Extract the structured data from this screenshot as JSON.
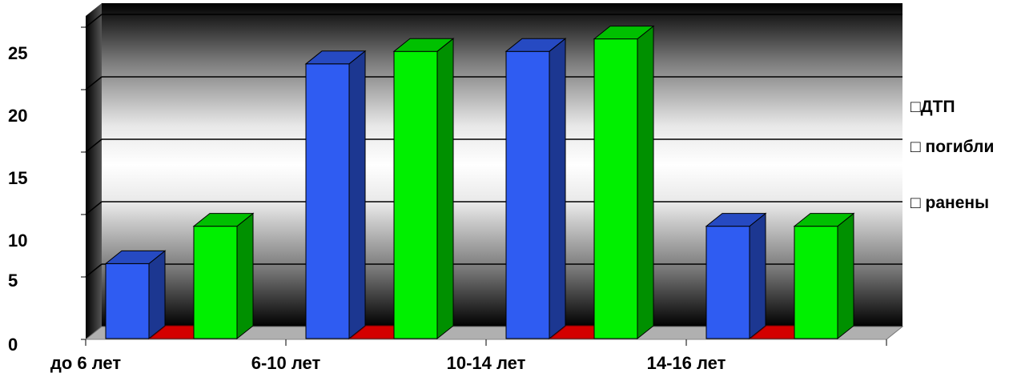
{
  "chart_data": {
    "type": "bar",
    "categories": [
      "до 6 лет",
      "6-10 лет",
      "10-14 лет",
      "14-16 лет"
    ],
    "series": [
      {
        "name": "ДТП",
        "values": [
          6,
          22,
          23,
          9
        ],
        "color": "#2f5cf2"
      },
      {
        "name": "погибли",
        "values": [
          0,
          0,
          0,
          0
        ],
        "color": "#d40000"
      },
      {
        "name": "ранены",
        "values": [
          9,
          23,
          24,
          9
        ],
        "color": "#00f000"
      }
    ],
    "yticks": [
      0,
      5,
      10,
      15,
      20,
      25
    ],
    "ylim": [
      0,
      25
    ],
    "legend_position": "right",
    "three_d": true,
    "grid": true
  },
  "legend": {
    "items": [
      {
        "label": "□ДТП"
      },
      {
        "label": "□ погибли"
      },
      {
        "label": "□ ранены"
      }
    ]
  }
}
